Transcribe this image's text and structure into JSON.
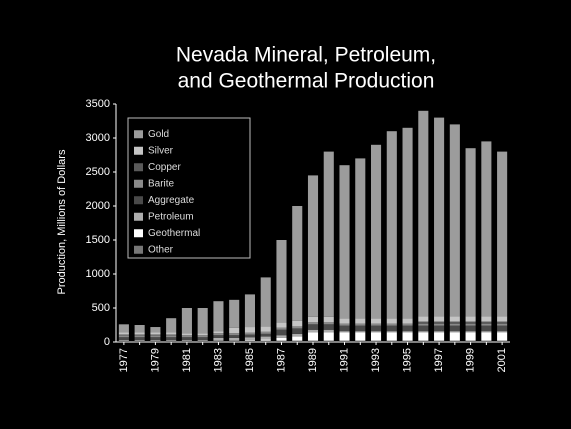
{
  "chart_data": {
    "type": "stacked_bar",
    "title": [
      "Nevada Mineral, Petroleum,",
      "and Geothermal Production"
    ],
    "y_label": "Production, Millions of Dollars",
    "categories": [
      "1977",
      null,
      "1979",
      null,
      "1981",
      null,
      "1983",
      null,
      "1985",
      null,
      "1987",
      null,
      "1989",
      null,
      "1991",
      null,
      "1993",
      null,
      "1995",
      null,
      "1997",
      null,
      "1999",
      null,
      "2001"
    ],
    "ylim": [
      0,
      3500
    ],
    "yticks": [
      0,
      500,
      1000,
      1500,
      2000,
      2500,
      3000,
      3500
    ],
    "legend": "upper left",
    "series": [
      {
        "name": "Gold",
        "color": "#9c9c9c",
        "values": [
          120,
          110,
          80,
          210,
          370,
          370,
          440,
          410,
          480,
          720,
          1210,
          1690,
          2080,
          2430,
          2250,
          2350,
          2550,
          2750,
          2800,
          3020,
          2920,
          2820,
          2470,
          2570,
          2420
        ]
      },
      {
        "name": "Silver",
        "color": "#c4c4c4",
        "values": [
          30,
          30,
          30,
          30,
          30,
          30,
          30,
          80,
          80,
          80,
          80,
          80,
          80,
          80,
          80,
          80,
          80,
          80,
          80,
          80,
          80,
          80,
          80,
          80,
          80
        ]
      },
      {
        "name": "Copper",
        "color": "#5a5a5a",
        "values": [
          10,
          10,
          10,
          10,
          0,
          0,
          0,
          0,
          0,
          0,
          0,
          0,
          0,
          0,
          0,
          0,
          0,
          0,
          0,
          30,
          30,
          30,
          30,
          30,
          30
        ]
      },
      {
        "name": "Barite",
        "color": "#8a8a8a",
        "values": [
          30,
          30,
          30,
          30,
          30,
          30,
          30,
          30,
          30,
          30,
          30,
          30,
          30,
          30,
          30,
          30,
          30,
          30,
          30,
          30,
          30,
          30,
          30,
          30,
          30
        ]
      },
      {
        "name": "Aggregate",
        "color": "#4a4a4a",
        "values": [
          40,
          40,
          40,
          40,
          40,
          40,
          40,
          40,
          40,
          40,
          80,
          80,
          80,
          80,
          80,
          80,
          80,
          80,
          80,
          80,
          80,
          80,
          80,
          80,
          80
        ]
      },
      {
        "name": "Petroleum",
        "color": "#adadad",
        "values": [
          10,
          10,
          10,
          10,
          10,
          10,
          40,
          40,
          40,
          40,
          40,
          40,
          40,
          40,
          20,
          20,
          20,
          20,
          20,
          20,
          20,
          20,
          20,
          20,
          20
        ]
      },
      {
        "name": "Geothermal",
        "color": "#ffffff",
        "values": [
          0,
          0,
          0,
          0,
          0,
          0,
          0,
          0,
          10,
          20,
          40,
          60,
          120,
          120,
          120,
          120,
          120,
          120,
          120,
          120,
          120,
          120,
          120,
          120,
          120
        ]
      },
      {
        "name": "Other",
        "color": "#777777",
        "values": [
          20,
          20,
          20,
          20,
          20,
          20,
          20,
          20,
          20,
          20,
          20,
          20,
          20,
          20,
          20,
          20,
          20,
          20,
          20,
          20,
          20,
          20,
          20,
          20,
          20
        ]
      }
    ]
  }
}
